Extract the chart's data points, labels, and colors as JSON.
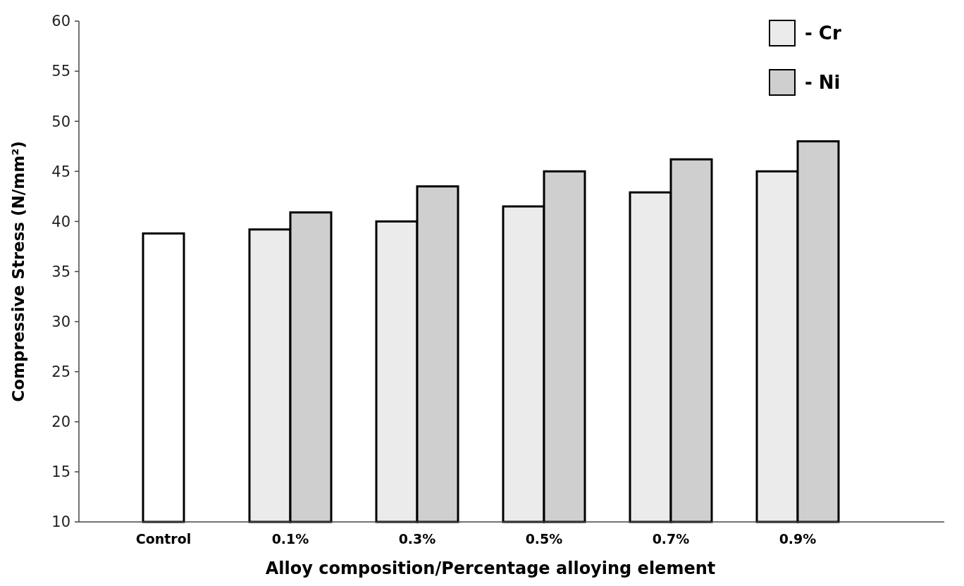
{
  "chart_data": {
    "type": "bar",
    "xlabel": "Alloy composition/Percentage alloying element",
    "ylabel": "Compressive Stress (N/mm²)",
    "categories": [
      "Control",
      "0.1%",
      "0.3%",
      "0.5%",
      "0.7%",
      "0.9%"
    ],
    "series": [
      {
        "color": "#ffffff",
        "values": [
          38.8,
          null,
          null,
          null,
          null,
          null
        ]
      },
      {
        "name": "- Cr",
        "color": "#ebebeb",
        "values": [
          null,
          39.2,
          40.0,
          41.5,
          42.9,
          45.0
        ]
      },
      {
        "name": "- Ni",
        "color": "#cfcfcf",
        "values": [
          null,
          40.9,
          43.5,
          45.0,
          46.2,
          48.0
        ]
      }
    ],
    "ylim": [
      10,
      60
    ],
    "yticks": [
      10,
      15,
      20,
      25,
      30,
      35,
      40,
      45,
      50,
      55,
      60
    ],
    "grid": false,
    "legend": "top right"
  }
}
